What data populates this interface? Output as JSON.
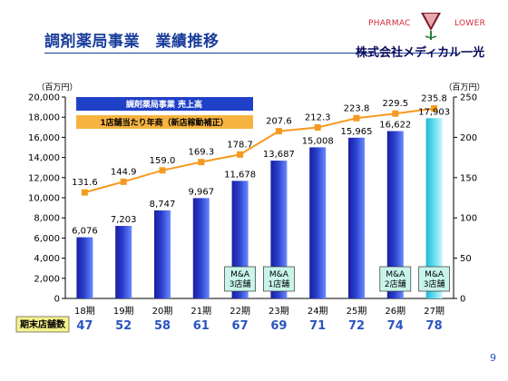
{
  "header": {
    "title": "調剤薬局事業　業績推移",
    "company_name": "株式会社メディカル一光",
    "logo_text_left": "PHARMAC",
    "logo_text_right": "LOWER"
  },
  "page_number": "9",
  "colors": {
    "bar": "#2a3fcc",
    "bar_highlight": "#66ddee",
    "line": "#f59a20",
    "title": "#1a3d9c"
  },
  "chart_data": {
    "type": "bar",
    "categories": [
      "18期",
      "19期",
      "20期",
      "21期",
      "22期",
      "23期",
      "24期",
      "25期",
      "26期",
      "27期"
    ],
    "series": [
      {
        "name": "調剤薬局事業 売上高",
        "type": "bar",
        "axis": "left",
        "values": [
          6076,
          7203,
          8747,
          9967,
          11678,
          13687,
          15008,
          15965,
          16622,
          17903
        ],
        "labels": [
          "6,076",
          "7,203",
          "8,747",
          "9,967",
          "11,678",
          "13,687",
          "15,008",
          "15,965",
          "16,622",
          "17,903"
        ]
      },
      {
        "name": "1店舗当たり年商（新店稼動補正）",
        "type": "line",
        "axis": "right",
        "values": [
          131.6,
          144.9,
          159.0,
          169.3,
          178.7,
          207.6,
          212.3,
          223.8,
          229.5,
          235.8
        ],
        "labels": [
          "131.6",
          "144.9",
          "159.0",
          "169.3",
          "178.7",
          "207.6",
          "212.3",
          "223.8",
          "229.5",
          "235.8"
        ]
      }
    ],
    "y_left": {
      "label": "（百万円）",
      "ylim": [
        0,
        20000
      ],
      "ticks": [
        "0",
        "2,000",
        "4,000",
        "6,000",
        "8,000",
        "10,000",
        "12,000",
        "14,000",
        "16,000",
        "18,000",
        "20,000"
      ]
    },
    "y_right": {
      "label": "（百万円）",
      "ylim": [
        0,
        250
      ],
      "ticks": [
        "0",
        "50",
        "100",
        "150",
        "200",
        "250"
      ]
    },
    "annotations": [
      {
        "category": "22期",
        "text": "M&A\n3店舗"
      },
      {
        "category": "23期",
        "text": "M&A\n1店舗"
      },
      {
        "category": "26期",
        "text": "M&A\n2店舗"
      },
      {
        "category": "27期",
        "text": "M&A\n3店舗"
      }
    ],
    "highlight_category": "27期",
    "store_count": {
      "label": "期末店舗数",
      "values": [
        "47",
        "52",
        "58",
        "61",
        "67",
        "69",
        "71",
        "72",
        "74",
        "78"
      ]
    },
    "grid": false,
    "legend": "top-left"
  }
}
